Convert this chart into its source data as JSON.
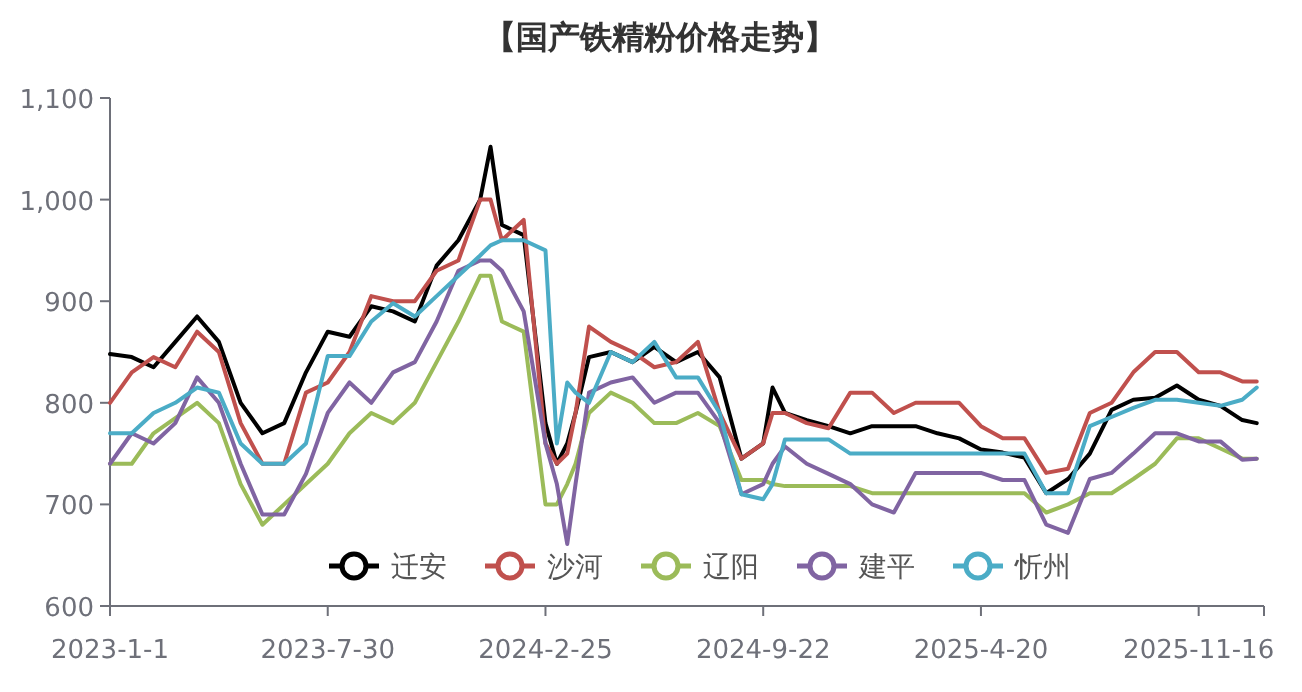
{
  "chart_data": {
    "type": "line",
    "title": "【国产铁精粉价格走势】",
    "x": [
      "2023-01-01",
      "2023-01-22",
      "2023-02-12",
      "2023-03-05",
      "2023-03-26",
      "2023-04-16",
      "2023-05-07",
      "2023-05-28",
      "2023-06-18",
      "2023-07-09",
      "2023-07-30",
      "2023-08-20",
      "2023-09-10",
      "2023-10-01",
      "2023-10-22",
      "2023-11-12",
      "2023-12-03",
      "2023-12-24",
      "2024-01-03",
      "2024-01-14",
      "2024-02-04",
      "2024-02-25",
      "2024-03-07",
      "2024-03-17",
      "2024-03-25",
      "2024-04-07",
      "2024-04-28",
      "2024-05-19",
      "2024-06-09",
      "2024-06-30",
      "2024-07-21",
      "2024-08-11",
      "2024-09-01",
      "2024-09-22",
      "2024-10-01",
      "2024-10-13",
      "2024-11-03",
      "2024-11-24",
      "2024-12-15",
      "2025-01-05",
      "2025-01-26",
      "2025-02-16",
      "2025-03-09",
      "2025-03-30",
      "2025-04-20",
      "2025-05-11",
      "2025-06-01",
      "2025-06-22",
      "2025-07-13",
      "2025-08-03",
      "2025-08-24",
      "2025-09-14",
      "2025-10-05",
      "2025-10-26",
      "2025-11-16",
      "2025-12-07",
      "2025-12-28",
      "2026-01-11"
    ],
    "series": [
      {
        "name": "迁安",
        "color": "#000000",
        "values": [
          848,
          845,
          835,
          860,
          885,
          860,
          800,
          770,
          780,
          830,
          870,
          865,
          895,
          890,
          880,
          935,
          960,
          1000,
          1052,
          975,
          965,
          780,
          740,
          760,
          790,
          845,
          850,
          840,
          855,
          840,
          850,
          825,
          745,
          760,
          815,
          790,
          783,
          777,
          770,
          777,
          777,
          777,
          770,
          765,
          754,
          751,
          746,
          711,
          725,
          750,
          793,
          803,
          805,
          817,
          803,
          797,
          783,
          780
        ]
      },
      {
        "name": "沙河",
        "color": "#c0504d",
        "values": [
          800,
          830,
          845,
          835,
          870,
          850,
          780,
          740,
          740,
          810,
          820,
          850,
          905,
          900,
          900,
          930,
          940,
          1000,
          1000,
          960,
          980,
          760,
          740,
          750,
          790,
          875,
          860,
          850,
          835,
          840,
          860,
          790,
          745,
          760,
          790,
          790,
          780,
          775,
          810,
          810,
          790,
          800,
          800,
          800,
          777,
          765,
          765,
          731,
          735,
          790,
          800,
          830,
          850,
          850,
          830,
          830,
          821,
          821
        ]
      },
      {
        "name": "辽阳",
        "color": "#9bbb59",
        "values": [
          740,
          740,
          770,
          785,
          800,
          780,
          720,
          680,
          700,
          720,
          740,
          770,
          790,
          780,
          800,
          840,
          880,
          925,
          925,
          880,
          870,
          700,
          700,
          720,
          740,
          790,
          810,
          800,
          780,
          780,
          790,
          777,
          724,
          724,
          720,
          718,
          718,
          718,
          718,
          711,
          711,
          711,
          711,
          711,
          711,
          711,
          711,
          692,
          700,
          711,
          711,
          725,
          740,
          765,
          765,
          755,
          745,
          745
        ]
      },
      {
        "name": "建平",
        "color": "#8064a2",
        "values": [
          740,
          770,
          760,
          780,
          825,
          800,
          740,
          690,
          690,
          730,
          790,
          820,
          800,
          830,
          840,
          880,
          930,
          940,
          940,
          930,
          890,
          760,
          720,
          661,
          720,
          810,
          820,
          825,
          800,
          810,
          810,
          780,
          710,
          720,
          740,
          757,
          740,
          730,
          720,
          700,
          692,
          731,
          731,
          731,
          731,
          724,
          724,
          680,
          672,
          725,
          731,
          750,
          770,
          770,
          762,
          762,
          744,
          745
        ]
      },
      {
        "name": "忻州",
        "color": "#4bacc6",
        "values": [
          770,
          770,
          790,
          800,
          815,
          810,
          760,
          740,
          740,
          760,
          846,
          846,
          880,
          898,
          885,
          905,
          925,
          945,
          955,
          960,
          960,
          950,
          760,
          820,
          810,
          800,
          850,
          840,
          860,
          825,
          825,
          790,
          710,
          705,
          720,
          764,
          764,
          764,
          750,
          750,
          750,
          750,
          750,
          750,
          750,
          750,
          750,
          711,
          711,
          777,
          786,
          795,
          803,
          803,
          800,
          797,
          803,
          815
        ]
      }
    ],
    "xlim": [
      "2023-01-01",
      "2026-01-18"
    ],
    "xticks": [
      {
        "value": "2023-01-01",
        "label": "2023-1-1"
      },
      {
        "value": "2023-07-30",
        "label": "2023-7-30"
      },
      {
        "value": "2024-02-25",
        "label": "2024-2-25"
      },
      {
        "value": "2024-09-22",
        "label": "2024-9-22"
      },
      {
        "value": "2025-04-20",
        "label": "2025-4-20"
      },
      {
        "value": "2025-11-16",
        "label": "2025-11-16"
      }
    ],
    "ylim": [
      600,
      1100
    ],
    "yticks": [
      600,
      700,
      800,
      900,
      {
        "value": 1000,
        "label": "1,000"
      },
      {
        "value": 1100,
        "label": "1,100"
      }
    ],
    "legend": "bottom",
    "grid": false,
    "marker": "none",
    "line_style": "solid"
  }
}
